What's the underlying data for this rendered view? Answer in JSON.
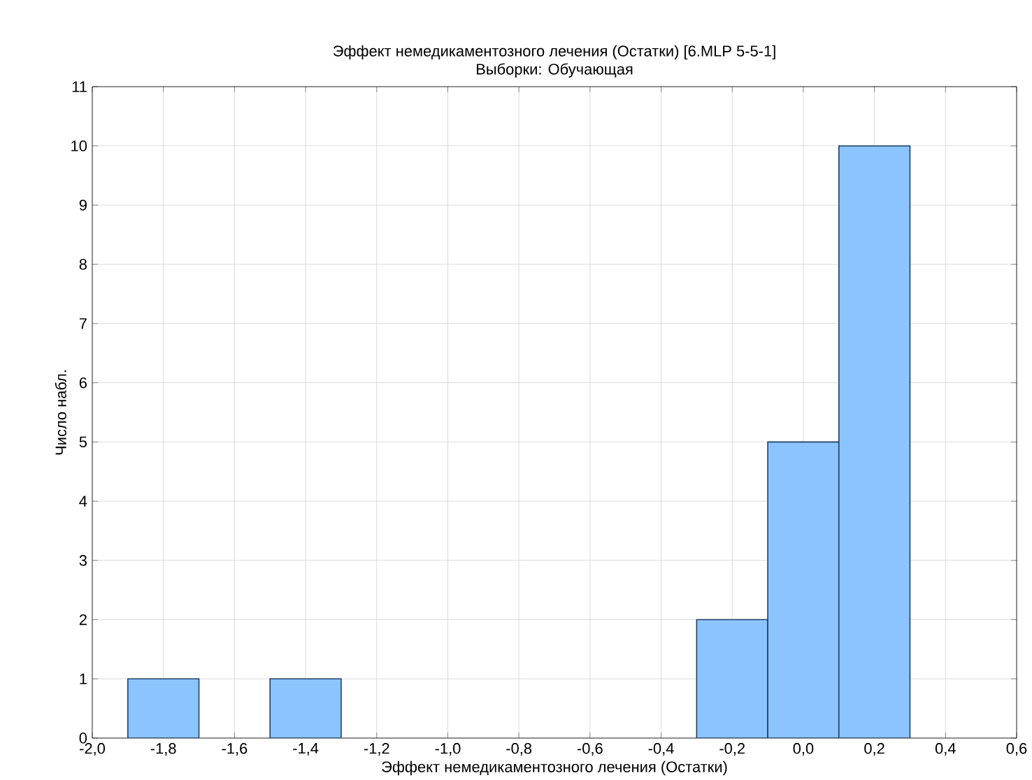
{
  "chart_data": {
    "type": "histogram",
    "title": "Эффект немедикаментозного лечения (Остатки) [6.MLP 5-5-1]",
    "subtitle": "Выборки: Обучающая",
    "xlabel": "Эффект немедикаментозного лечения (Остатки)",
    "ylabel": "Число набл.",
    "bins": [
      -1.9,
      -1.7,
      -1.5,
      -1.3,
      -1.1,
      -0.9,
      -0.7,
      -0.5,
      -0.3,
      -0.1,
      0.1,
      0.3
    ],
    "values": [
      1,
      0,
      1,
      0,
      0,
      0,
      0,
      0,
      2,
      5,
      10
    ],
    "color": "#8cc4ff",
    "xlim": [
      -2.0,
      0.6
    ],
    "xticks": [
      {
        "value": -2.0,
        "label": "-2,0"
      },
      {
        "value": -1.8,
        "label": "-1,8"
      },
      {
        "value": -1.6,
        "label": "-1,6"
      },
      {
        "value": -1.4,
        "label": "-1,4"
      },
      {
        "value": -1.2,
        "label": "-1,2"
      },
      {
        "value": -1.0,
        "label": "-1,0"
      },
      {
        "value": -0.8,
        "label": "-0,8"
      },
      {
        "value": -0.6,
        "label": "-0,6"
      },
      {
        "value": -0.4,
        "label": "-0,4"
      },
      {
        "value": -0.2,
        "label": "-0,2"
      },
      {
        "value": 0.0,
        "label": "0,0"
      },
      {
        "value": 0.2,
        "label": "0,2"
      },
      {
        "value": 0.4,
        "label": "0,4"
      },
      {
        "value": 0.6,
        "label": "0,6"
      }
    ],
    "ylim": [
      0,
      11
    ],
    "yticks": [
      0,
      1,
      2,
      3,
      4,
      5,
      6,
      7,
      8,
      9,
      10,
      11
    ],
    "grid": true
  }
}
